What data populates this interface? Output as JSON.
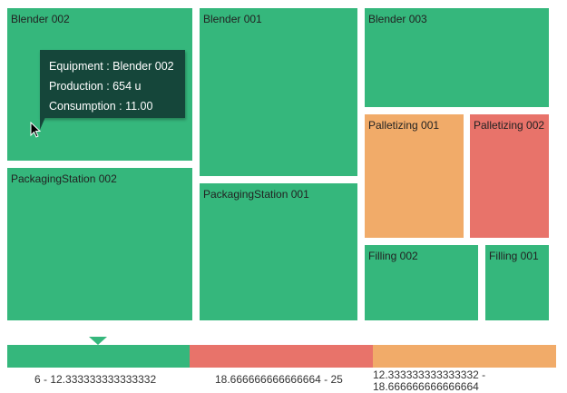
{
  "tiles": [
    {
      "label": "Blender 002",
      "status": "green"
    },
    {
      "label": "PackagingStation 002",
      "status": "green"
    },
    {
      "label": "Blender 001",
      "status": "green"
    },
    {
      "label": "PackagingStation 001",
      "status": "green"
    },
    {
      "label": "Blender 003",
      "status": "green"
    },
    {
      "label": "Palletizing 001",
      "status": "orange"
    },
    {
      "label": "Palletizing 002",
      "status": "red"
    },
    {
      "label": "Filling 002",
      "status": "green"
    },
    {
      "label": "Filling 001",
      "status": "green"
    }
  ],
  "tooltip": {
    "equipment": "Equipment : Blender 002",
    "production": "Production : 654 u",
    "consumption": "Consumption : 11.00"
  },
  "legend": {
    "ranges": [
      "6 - 12.333333333333332",
      "18.666666666666664 - 25",
      "12.333333333333332 - 18.666666666666664"
    ],
    "colors": [
      "#35b77c",
      "#e8736a",
      "#f1ab69"
    ],
    "marker_index": 0
  }
}
